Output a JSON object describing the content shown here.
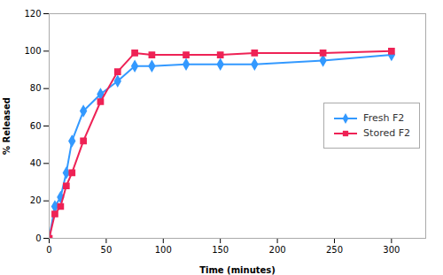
{
  "chart_data": {
    "type": "line",
    "xlabel": "Time (minutes)",
    "ylabel": "% Released",
    "x": [
      0,
      5,
      10,
      15,
      20,
      30,
      45,
      60,
      75,
      90,
      120,
      150,
      180,
      240,
      300
    ],
    "series": [
      {
        "name": "Fresh F2",
        "color": "#3399FF",
        "marker": "diamond",
        "values": [
          0,
          17,
          22,
          35,
          52,
          68,
          77,
          84,
          92,
          92,
          93,
          93,
          93,
          95,
          98
        ]
      },
      {
        "name": "Stored F2",
        "color": "#EE2255",
        "marker": "square",
        "values": [
          0,
          13,
          17,
          28,
          35,
          52,
          73,
          89,
          99,
          98,
          98,
          98,
          99,
          99,
          100
        ]
      }
    ],
    "xlim": [
      0,
      330
    ],
    "ylim": [
      0,
      120
    ],
    "xticks": [
      0,
      50,
      100,
      150,
      200,
      250,
      300
    ],
    "yticks": [
      0,
      20,
      40,
      60,
      80,
      100,
      120
    ],
    "grid": false,
    "legend": "right"
  }
}
